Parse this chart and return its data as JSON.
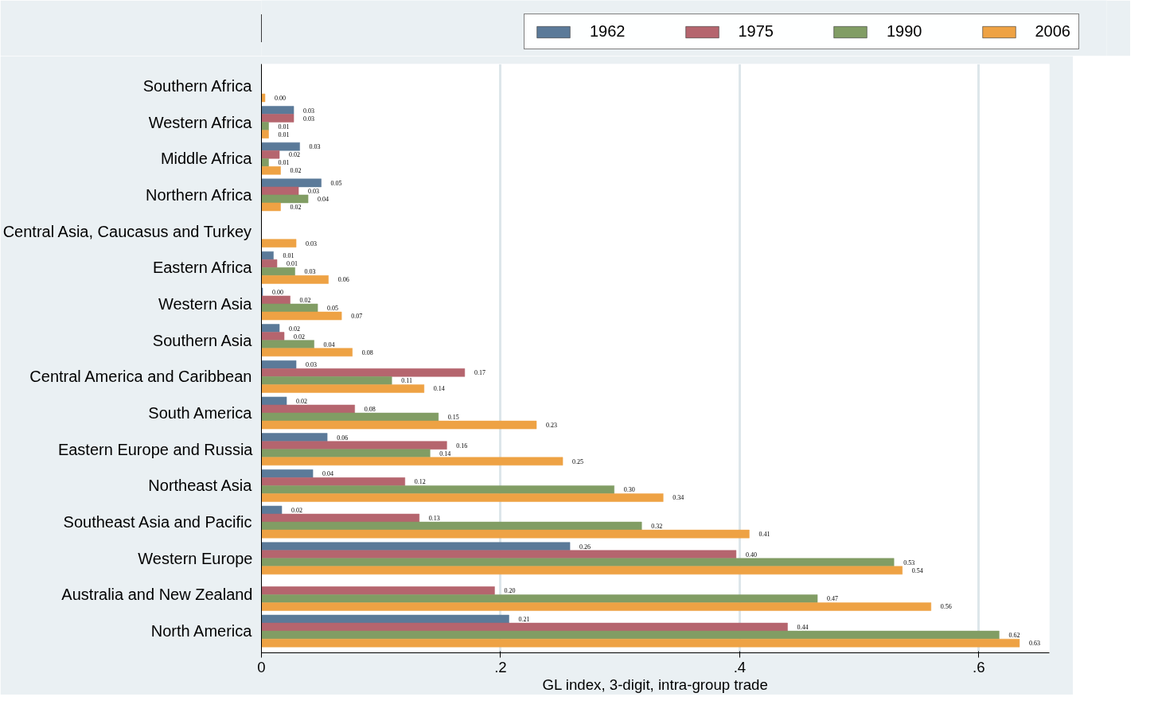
{
  "chart_data": {
    "type": "bar",
    "orientation": "horizontal",
    "xlabel": "GL index, 3-digit, intra-group trade",
    "categories": [
      "Southern Africa",
      "Western Africa",
      "Middle Africa",
      "Northern Africa",
      "Central Asia, Caucasus and Turkey",
      "Eastern Africa",
      "Western Asia",
      "Southern Asia",
      "Central America and Caribbean",
      "South America",
      "Eastern Europe and Russia",
      "Northeast Asia",
      "Southeast Asia and Pacific",
      "Western Europe",
      "Australia and New Zealand",
      "North America"
    ],
    "series": [
      {
        "name": "1962",
        "color": "#5b7a99",
        "values": [
          null,
          0.027,
          0.032,
          0.05,
          null,
          0.01,
          0.001,
          0.015,
          0.029,
          0.021,
          0.055,
          0.043,
          0.017,
          0.258,
          null,
          0.207
        ],
        "value_labels": [
          null,
          "0.03",
          "0.03",
          "0.05",
          null,
          "0.01",
          "0.00",
          "0.02",
          "0.03",
          "0.02",
          "0.06",
          "0.04",
          "0.02",
          "0.26",
          null,
          "0.21"
        ]
      },
      {
        "name": "1975",
        "color": "#b5656e",
        "values": [
          null,
          0.027,
          0.015,
          0.031,
          null,
          0.013,
          0.024,
          0.019,
          0.17,
          0.078,
          0.155,
          0.12,
          0.132,
          0.397,
          0.195,
          0.44
        ],
        "value_labels": [
          null,
          "0.03",
          "0.02",
          "0.03",
          null,
          "0.01",
          "0.02",
          "0.02",
          "0.17",
          "0.08",
          "0.16",
          "0.12",
          "0.13",
          "0.40",
          "0.20",
          "0.44"
        ]
      },
      {
        "name": "1990",
        "color": "#819d64",
        "values": [
          null,
          0.006,
          0.006,
          0.039,
          null,
          0.028,
          0.047,
          0.044,
          0.109,
          0.148,
          0.141,
          0.295,
          0.318,
          0.529,
          0.465,
          0.617
        ],
        "value_labels": [
          null,
          "0.01",
          "0.01",
          "0.04",
          null,
          "0.03",
          "0.05",
          "0.04",
          "0.11",
          "0.15",
          "0.14",
          "0.30",
          "0.32",
          "0.53",
          "0.47",
          "0.62"
        ]
      },
      {
        "name": "2006",
        "color": "#eea244",
        "values": [
          0.003,
          0.006,
          0.016,
          0.016,
          0.029,
          0.056,
          0.067,
          0.076,
          0.136,
          0.23,
          0.252,
          0.336,
          0.408,
          0.536,
          0.56,
          0.634
        ],
        "value_labels": [
          "0.00",
          "0.01",
          "0.02",
          "0.02",
          "0.03",
          "0.06",
          "0.07",
          "0.08",
          "0.14",
          "0.23",
          "0.25",
          "0.34",
          "0.41",
          "0.54",
          "0.56",
          "0.63"
        ]
      }
    ],
    "xlim": [
      0,
      0.659
    ],
    "xticks": [
      0,
      {
        "value": 0.2,
        "label": ".2"
      },
      {
        "value": 0.4,
        "label": ".4"
      },
      {
        "value": 0.6,
        "label": ".6"
      }
    ],
    "grid": "x",
    "legend": "top"
  }
}
